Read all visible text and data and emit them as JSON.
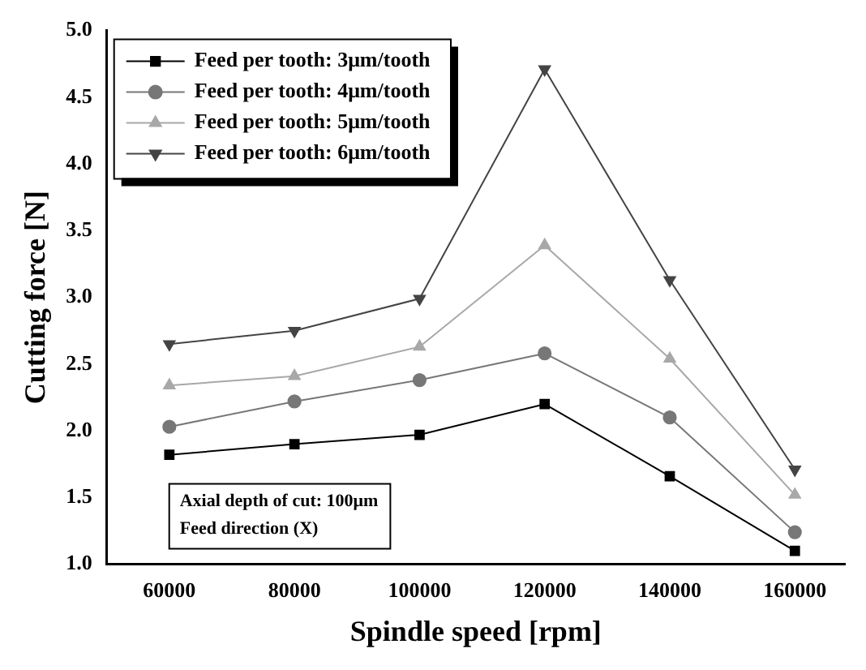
{
  "chart_data": {
    "type": "line",
    "xlabel": "Spindle speed [rpm]",
    "ylabel": "Cutting force [N]",
    "x": [
      60000,
      80000,
      100000,
      120000,
      140000,
      160000
    ],
    "xlim": [
      50000,
      168000
    ],
    "xticks": [
      60000,
      80000,
      100000,
      120000,
      140000,
      160000
    ],
    "ylim": [
      1.0,
      5.0
    ],
    "yticks": [
      {
        "value": 1.0,
        "label": "1.0"
      },
      {
        "value": 1.5,
        "label": "1.5"
      },
      {
        "value": 2.0,
        "label": "2.0"
      },
      {
        "value": 2.5,
        "label": "2.5"
      },
      {
        "value": 3.0,
        "label": "3.0"
      },
      {
        "value": 3.5,
        "label": "3.5"
      },
      {
        "value": 4.0,
        "label": "4.0"
      },
      {
        "value": 4.5,
        "label": "4.5"
      },
      {
        "value": 5.0,
        "label": "5.0"
      }
    ],
    "legend": "top left",
    "grid": false,
    "annotations": [
      "Axial depth of cut: 100μm",
      "Feed direction (X)"
    ],
    "series": [
      {
        "name": "Feed per tooth: 3μm/tooth",
        "color": "#000000",
        "marker": "square",
        "values": [
          1.82,
          1.9,
          1.97,
          2.2,
          1.66,
          1.1
        ]
      },
      {
        "name": "Feed per tooth: 4μm/tooth",
        "color": "#777777",
        "marker": "circle",
        "values": [
          2.03,
          2.22,
          2.38,
          2.58,
          2.1,
          1.24
        ]
      },
      {
        "name": "Feed per tooth: 5μm/tooth",
        "color": "#a8a8a8",
        "marker": "triangle",
        "values": [
          2.34,
          2.41,
          2.63,
          3.39,
          2.54,
          1.52
        ]
      },
      {
        "name": "Feed per tooth: 6μm/tooth",
        "color": "#444444",
        "marker": "triangle-down",
        "values": [
          2.65,
          2.75,
          2.99,
          4.71,
          3.13,
          1.71
        ]
      }
    ]
  }
}
